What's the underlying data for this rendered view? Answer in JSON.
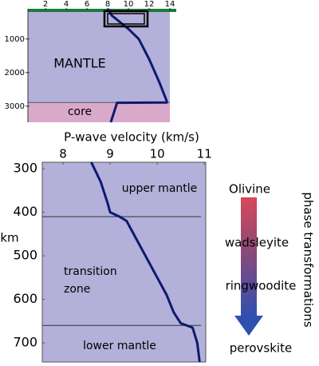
{
  "chart_data": [
    {
      "type": "line",
      "labels": [
        "MANTLE",
        "core"
      ],
      "xlim": [
        0.3,
        14
      ],
      "xticks": [
        2,
        4,
        6,
        8,
        10,
        12,
        14
      ],
      "ylim": [
        100,
        3480
      ],
      "yticks": [
        1000,
        2000,
        3000
      ],
      "core_top": 2890,
      "mantle_color": "#b3b0d9",
      "core_color": "#d9a9cb",
      "series": [
        {
          "color": "#0c1a6e",
          "x": [
            8.0,
            8.4,
            10.0,
            11.0,
            12.0,
            13.0,
            13.7,
            13.7,
            8.9,
            8.3
          ],
          "values": [
            100,
            300,
            700,
            1000,
            1600,
            2300,
            2850,
            2890,
            2900,
            3480
          ]
        }
      ]
    },
    {
      "type": "line",
      "title": "P-wave velocity (km/s)",
      "y_label": "km",
      "annotations": [
        "upper mantle",
        "transition",
        "zone",
        "lower mantle"
      ],
      "xlim": [
        7.56,
        11.03
      ],
      "xticks": [
        8,
        9,
        10,
        11
      ],
      "ylim": [
        285,
        744
      ],
      "yticks": [
        300,
        400,
        500,
        600,
        700
      ],
      "boundaries": [
        410,
        660
      ],
      "fill_color": "#b3b0d9",
      "series": [
        {
          "color": "#0c1a6e",
          "x": [
            8.6,
            8.8,
            8.95,
            9.0,
            9.2,
            9.35,
            9.6,
            9.9,
            10.2,
            10.35,
            10.5,
            10.75,
            10.85,
            10.9
          ],
          "values": [
            285,
            330,
            380,
            400,
            410,
            420,
            470,
            530,
            590,
            630,
            655,
            665,
            700,
            744
          ]
        }
      ]
    }
  ],
  "phase_panel": {
    "title": "phase transformations",
    "phases": [
      "Olivine",
      "wadsleyite",
      "ringwoodite",
      "perovskite"
    ]
  }
}
